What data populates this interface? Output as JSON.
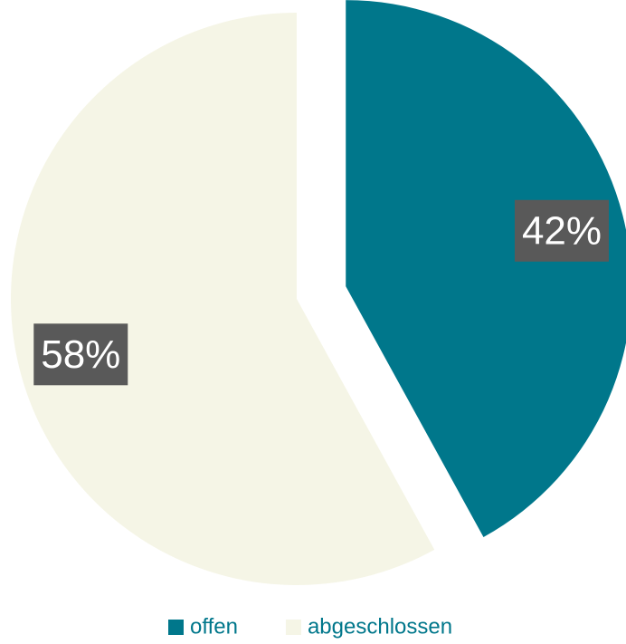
{
  "chart_data": {
    "type": "pie",
    "categories": [
      "offen",
      "abgeschlossen"
    ],
    "values": [
      42,
      58
    ],
    "value_labels": [
      "42%",
      "58%"
    ],
    "colors": [
      "#00778b",
      "#f5f5e6"
    ],
    "legend": "bottom"
  }
}
